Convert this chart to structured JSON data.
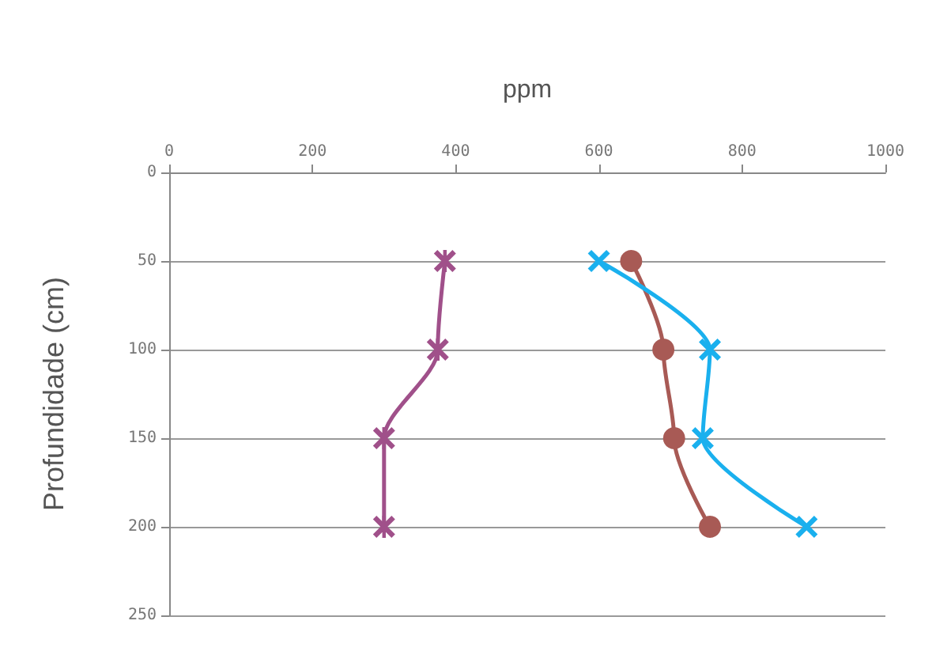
{
  "chart_data": {
    "type": "line",
    "xlabel": "ppm",
    "ylabel": "Profundidade (cm)",
    "xlim": [
      0,
      1000
    ],
    "xticks": [
      0,
      200,
      400,
      600,
      800,
      1000
    ],
    "ylim": [
      250,
      0
    ],
    "yticks": [
      0,
      50,
      100,
      150,
      200,
      250
    ],
    "grid": "y",
    "series": [
      {
        "color": "#a0508a",
        "marker": "star",
        "x": [
          385,
          375,
          300,
          300
        ],
        "values": [
          50,
          100,
          150,
          200
        ]
      },
      {
        "color": "#a85a55",
        "marker": "circle",
        "x": [
          645,
          690,
          705,
          755
        ],
        "values": [
          50,
          100,
          150,
          200
        ]
      },
      {
        "color": "#1ab0ee",
        "marker": "cross",
        "x": [
          600,
          755,
          745,
          890
        ],
        "values": [
          50,
          100,
          150,
          200
        ]
      }
    ]
  }
}
